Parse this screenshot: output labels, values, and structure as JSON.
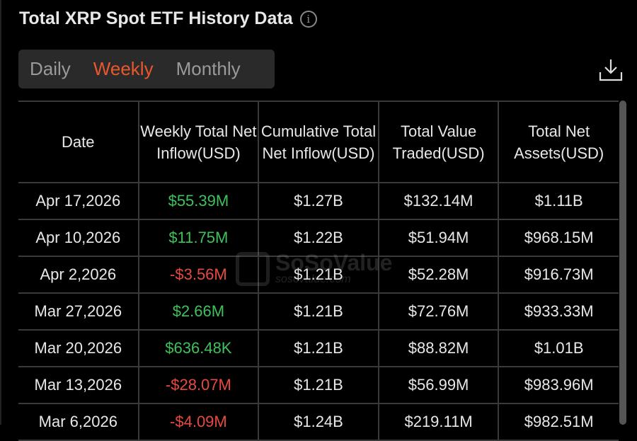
{
  "title": "Total XRP Spot ETF History Data",
  "tabs": [
    {
      "label": "Daily"
    },
    {
      "label": "Weekly"
    },
    {
      "label": "Monthly"
    }
  ],
  "active_tab": "Weekly",
  "watermark": {
    "brand": "SoSoValue",
    "url": "sosovalue.com"
  },
  "table": {
    "headers": [
      "Date",
      "Weekly Total Net Inflow(USD)",
      "Cumulative Total Net Inflow(USD)",
      "Total Value Traded(USD)",
      "Total Net Assets(USD)"
    ],
    "rows": [
      {
        "date": "Apr 17,2026",
        "inflow": "$55.39M",
        "cumulative": "$1.27B",
        "traded": "$132.14M",
        "assets": "$1.11B",
        "sign": "pos"
      },
      {
        "date": "Apr 10,2026",
        "inflow": "$11.75M",
        "cumulative": "$1.22B",
        "traded": "$51.94M",
        "assets": "$968.15M",
        "sign": "pos"
      },
      {
        "date": "Apr 2,2026",
        "inflow": "-$3.56M",
        "cumulative": "$1.21B",
        "traded": "$52.28M",
        "assets": "$916.73M",
        "sign": "neg"
      },
      {
        "date": "Mar 27,2026",
        "inflow": "$2.66M",
        "cumulative": "$1.21B",
        "traded": "$72.76M",
        "assets": "$933.33M",
        "sign": "pos"
      },
      {
        "date": "Mar 20,2026",
        "inflow": "$636.48K",
        "cumulative": "$1.21B",
        "traded": "$88.82M",
        "assets": "$1.01B",
        "sign": "pos"
      },
      {
        "date": "Mar 13,2026",
        "inflow": "-$28.07M",
        "cumulative": "$1.21B",
        "traded": "$56.99M",
        "assets": "$983.96M",
        "sign": "neg"
      },
      {
        "date": "Mar 6,2026",
        "inflow": "-$4.09M",
        "cumulative": "$1.24B",
        "traded": "$219.11M",
        "assets": "$982.51M",
        "sign": "neg"
      }
    ]
  },
  "colors": {
    "accent": "#e8572e",
    "positive": "#3fc15b",
    "negative": "#e8493f"
  }
}
